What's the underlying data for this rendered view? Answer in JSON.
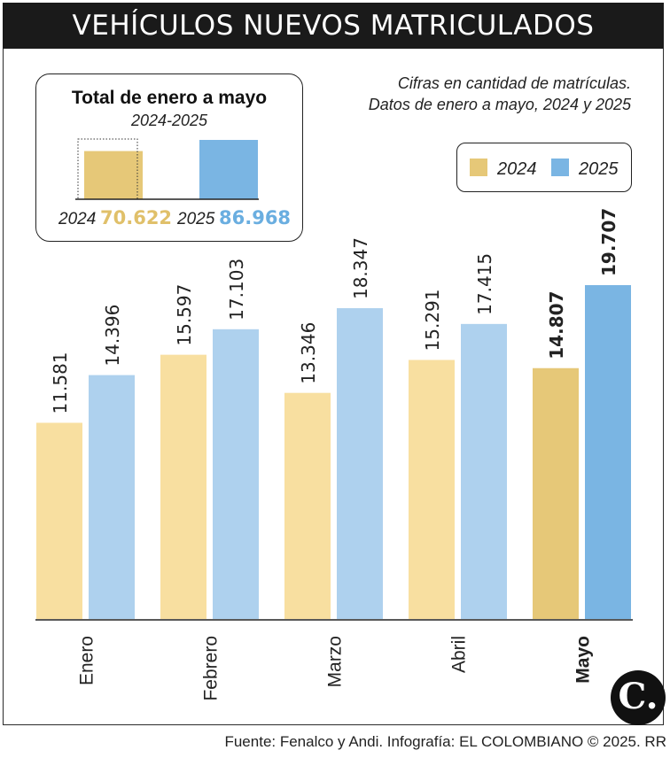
{
  "title": "VEHÍCULOS NUEVOS MATRICULADOS",
  "note": [
    "Cifras en cantidad de matrículas.",
    "Datos de enero a mayo, 2024 y 2025"
  ],
  "totals": {
    "title": "Total de enero a mayo",
    "subtitle": "2024-2025",
    "items": [
      {
        "year": "2024",
        "value": 70622,
        "label": "70.622"
      },
      {
        "year": "2025",
        "value": 86968,
        "label": "86.968"
      }
    ]
  },
  "legend": [
    "2024",
    "2025"
  ],
  "colors": {
    "c2024": "#f8dfa0",
    "c2025": "#aed1ee",
    "c2024_highlight": "#e6c878",
    "c2025_highlight": "#7ab5e3",
    "label2024": "#e0c06a",
    "label2025": "#6aaee0"
  },
  "footer": "Fuente: Fenalco y Andi. Infografía: EL COLOMBIANO © 2025. RR",
  "logo": "C.",
  "chart_data": {
    "type": "bar",
    "categories": [
      "Enero",
      "Febrero",
      "Marzo",
      "Abril",
      "Mayo"
    ],
    "series": [
      {
        "name": "2024",
        "values": [
          11581,
          15597,
          13346,
          15291,
          14807
        ],
        "labels": [
          "11.581",
          "15.597",
          "13.346",
          "15.291",
          "14.807"
        ]
      },
      {
        "name": "2025",
        "values": [
          14396,
          17103,
          18347,
          17415,
          19707
        ],
        "labels": [
          "14.396",
          "17.103",
          "18.347",
          "17.415",
          "19.707"
        ]
      }
    ],
    "highlight_category": "Mayo",
    "ylim": [
      0,
      19707
    ],
    "grid": false,
    "legend_position": "top-right"
  }
}
